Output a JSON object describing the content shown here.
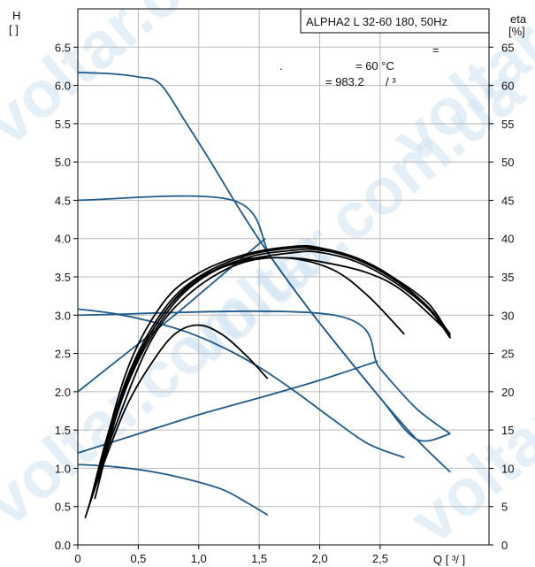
{
  "chart_data": {
    "type": "line",
    "title": "ALPHA2 L 32-60 180, 50Hz",
    "left_axis_label": [
      "H",
      "[ ]"
    ],
    "right_axis_label": [
      "eta",
      "[%]"
    ],
    "x_axis_label": "Q [ ³/ ]",
    "annotations": [
      "=",
      ".",
      "= 60 °C",
      "= 983.2",
      "/ ³"
    ],
    "watermark": "voltar.com.ua",
    "xlim": [
      0,
      3.4
    ],
    "ylim": [
      0,
      7.0
    ],
    "right_ylim": [
      0,
      70
    ],
    "x_ticks": [
      "0",
      "0,5",
      "1,0",
      "1,5",
      "2,0",
      "2,5"
    ],
    "x_tick_values": [
      0,
      0.5,
      1.0,
      1.5,
      2.0,
      2.5
    ],
    "y_ticks": [
      "0.0",
      "0.5",
      "1.0",
      "1.5",
      "2.0",
      "2.5",
      "3.0",
      "3.5",
      "4.0",
      "4.5",
      "5.0",
      "5.5",
      "6.0",
      "6.5"
    ],
    "y_tick_values": [
      0,
      0.5,
      1.0,
      1.5,
      2.0,
      2.5,
      3.0,
      3.5,
      4.0,
      4.5,
      5.0,
      5.5,
      6.0,
      6.5
    ],
    "right_ticks": [
      "0",
      "5",
      "10",
      "15",
      "20",
      "25",
      "30",
      "35",
      "40",
      "45",
      "50",
      "55",
      "60",
      "65"
    ],
    "right_tick_values": [
      0,
      5,
      10,
      15,
      20,
      25,
      30,
      35,
      40,
      45,
      50,
      55,
      60,
      65
    ],
    "grid": true,
    "colors": {
      "head_curves": "#1f5a8a",
      "efficiency_curves": "#000000",
      "grid": "#bbbbbb",
      "watermark": "#cfe3f2"
    },
    "head_series": [
      {
        "points": [
          [
            0,
            6.17
          ],
          [
            0.3,
            6.15
          ],
          [
            0.5,
            6.11
          ],
          [
            0.68,
            6.02
          ],
          [
            0.9,
            5.5
          ],
          [
            1.1,
            5.0
          ],
          [
            1.35,
            4.35
          ],
          [
            1.6,
            3.75
          ],
          [
            1.9,
            3.1
          ],
          [
            2.2,
            2.5
          ],
          [
            2.5,
            1.92
          ],
          [
            2.8,
            1.38
          ],
          [
            3.08,
            0.95
          ]
        ]
      },
      {
        "points": [
          [
            0,
            4.5
          ],
          [
            1.28,
            4.5
          ],
          [
            1.6,
            3.75
          ],
          [
            1.9,
            3.1
          ],
          [
            2.2,
            2.5
          ],
          [
            2.5,
            1.92
          ],
          [
            2.8,
            1.38
          ],
          [
            3.08,
            1.45
          ]
        ]
      },
      {
        "points": [
          [
            0,
            3.0
          ],
          [
            2.12,
            3.0
          ],
          [
            2.5,
            2.3
          ],
          [
            2.8,
            1.78
          ],
          [
            3.08,
            1.45
          ]
        ]
      },
      {
        "points": [
          [
            0,
            2.0
          ],
          [
            0.4,
            2.5
          ],
          [
            0.8,
            3.0
          ],
          [
            1.1,
            3.4
          ],
          [
            1.55,
            4.0
          ]
        ]
      },
      {
        "points": [
          [
            0,
            1.2
          ],
          [
            0.5,
            1.45
          ],
          [
            1.0,
            1.7
          ],
          [
            1.5,
            1.92
          ],
          [
            2.0,
            2.15
          ],
          [
            2.48,
            2.4
          ]
        ]
      },
      {
        "points": [
          [
            0,
            3.08
          ],
          [
            0.3,
            3.02
          ],
          [
            0.6,
            2.92
          ],
          [
            0.9,
            2.78
          ],
          [
            1.2,
            2.58
          ],
          [
            1.5,
            2.32
          ],
          [
            1.8,
            2.0
          ],
          [
            2.1,
            1.65
          ],
          [
            2.4,
            1.32
          ],
          [
            2.7,
            1.14
          ]
        ]
      },
      {
        "points": [
          [
            0,
            1.05
          ],
          [
            0.3,
            1.02
          ],
          [
            0.6,
            0.96
          ],
          [
            0.9,
            0.86
          ],
          [
            1.2,
            0.72
          ],
          [
            1.4,
            0.55
          ],
          [
            1.57,
            0.39
          ]
        ]
      }
    ],
    "efficiency_series": [
      {
        "points": [
          [
            0.06,
            3.5
          ],
          [
            0.2,
            10
          ],
          [
            0.4,
            18
          ],
          [
            0.6,
            23.5
          ],
          [
            0.8,
            27.5
          ],
          [
            1.0,
            28.7
          ],
          [
            1.2,
            27.4
          ],
          [
            1.4,
            24.6
          ],
          [
            1.57,
            21.7
          ]
        ]
      },
      {
        "points": [
          [
            0.08,
            4.5
          ],
          [
            0.3,
            15
          ],
          [
            0.6,
            26.5
          ],
          [
            0.9,
            32.5
          ],
          [
            1.3,
            36.5
          ],
          [
            1.7,
            37.5
          ],
          [
            2.1,
            36
          ],
          [
            2.4,
            32.5
          ],
          [
            2.7,
            27.5
          ]
        ]
      },
      {
        "points": [
          [
            0.1,
            5.5
          ],
          [
            0.3,
            17
          ],
          [
            0.6,
            27.5
          ],
          [
            0.9,
            33.5
          ],
          [
            1.3,
            37
          ],
          [
            1.7,
            37.5
          ],
          [
            2.0,
            37
          ],
          [
            2.4,
            35.5
          ],
          [
            2.7,
            33
          ],
          [
            3.08,
            27.5
          ]
        ]
      },
      {
        "points": [
          [
            0.1,
            5.5
          ],
          [
            0.4,
            20.5
          ],
          [
            0.7,
            29.5
          ],
          [
            1.0,
            34.5
          ],
          [
            1.4,
            37.5
          ],
          [
            1.8,
            38.5
          ],
          [
            2.0,
            38.5
          ],
          [
            2.3,
            37.5
          ],
          [
            2.6,
            35
          ],
          [
            2.9,
            31
          ],
          [
            3.08,
            27.5
          ]
        ]
      },
      {
        "points": [
          [
            0.12,
            6.5
          ],
          [
            0.4,
            21.5
          ],
          [
            0.7,
            30.5
          ],
          [
            1.0,
            35
          ],
          [
            1.4,
            37.8
          ],
          [
            1.8,
            38.8
          ],
          [
            2.0,
            38.6
          ],
          [
            2.3,
            37.3
          ],
          [
            2.6,
            34.8
          ],
          [
            2.9,
            31
          ],
          [
            3.08,
            27
          ]
        ]
      },
      {
        "points": [
          [
            0.13,
            7
          ],
          [
            0.4,
            22.5
          ],
          [
            0.7,
            31.5
          ],
          [
            1.0,
            35.5
          ],
          [
            1.4,
            38
          ],
          [
            1.8,
            39
          ],
          [
            2.0,
            38.8
          ],
          [
            2.3,
            37.5
          ],
          [
            2.6,
            35
          ],
          [
            2.9,
            31.5
          ],
          [
            3.08,
            27.2
          ]
        ]
      },
      {
        "points": [
          [
            0.14,
            6
          ],
          [
            0.4,
            21
          ],
          [
            0.7,
            30
          ],
          [
            1.0,
            34.8
          ],
          [
            1.4,
            37.2
          ],
          [
            1.8,
            38.2
          ],
          [
            2.0,
            38.2
          ],
          [
            2.3,
            37
          ],
          [
            2.6,
            34.5
          ],
          [
            2.9,
            30.8
          ],
          [
            3.08,
            27
          ]
        ]
      }
    ]
  }
}
